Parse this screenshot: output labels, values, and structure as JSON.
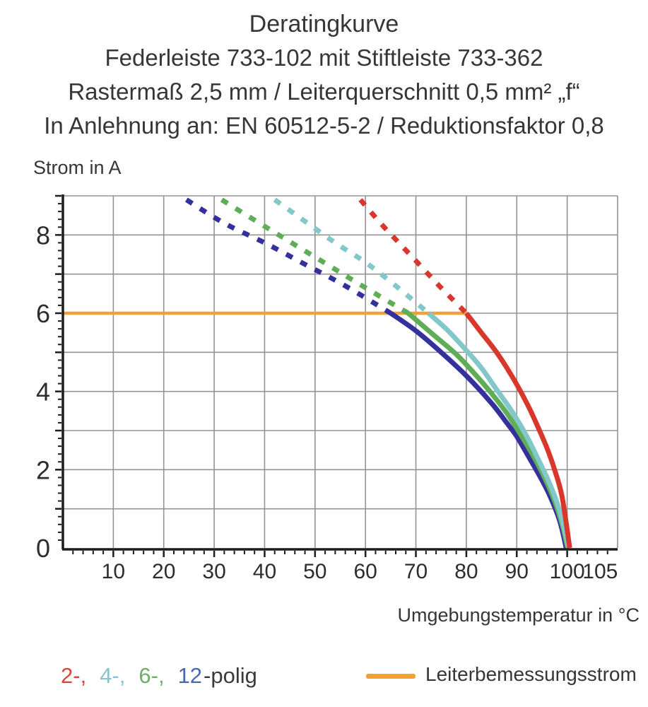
{
  "header": {
    "title": "Deratingkurve",
    "subtitle1": "Federleiste 733-102 mit Stiftleiste 733-362",
    "subtitle2": "Rastermaß 2,5 mm / Leiterquerschnitt 0,5 mm² „f“",
    "subtitle3": "In Anlehnung an: EN 60512-5-2 / Reduktionsfaktor 0,8"
  },
  "chart_data": {
    "type": "line",
    "title": "Deratingkurve",
    "xlabel": "Umgebungstemperatur in °C",
    "ylabel": "Strom in A",
    "xlim": [
      0,
      110
    ],
    "ylim": [
      0,
      9
    ],
    "xticks": [
      10,
      20,
      30,
      40,
      50,
      60,
      70,
      80,
      90,
      100,
      105
    ],
    "xtick_minor_step": 2,
    "ytick_labels": [
      0,
      2,
      4,
      6,
      8
    ],
    "ytick_minor_step": 0.2,
    "grid": true,
    "grid_color": "#939393",
    "axis_color": "#1c1c1c",
    "series": [
      {
        "name": "2-polig",
        "color": "#d8382c",
        "dashed": [
          [
            59,
            8.9
          ],
          [
            63,
            8.3
          ],
          [
            67,
            7.75
          ],
          [
            71,
            7.2
          ],
          [
            75,
            6.65
          ],
          [
            80,
            6.0
          ]
        ],
        "solid": [
          [
            80,
            6.0
          ],
          [
            83,
            5.5
          ],
          [
            86,
            5.0
          ],
          [
            89,
            4.4
          ],
          [
            92,
            3.7
          ],
          [
            94,
            3.15
          ],
          [
            96,
            2.55
          ],
          [
            97.5,
            2.0
          ],
          [
            99,
            1.3
          ],
          [
            100.5,
            0
          ]
        ]
      },
      {
        "name": "4-polig",
        "color": "#82c7c9",
        "dashed": [
          [
            42,
            8.9
          ],
          [
            48,
            8.35
          ],
          [
            54,
            7.8
          ],
          [
            60,
            7.3
          ],
          [
            66,
            6.7
          ],
          [
            72.5,
            6.0
          ]
        ],
        "solid": [
          [
            72.5,
            6.0
          ],
          [
            76,
            5.6
          ],
          [
            80,
            5.05
          ],
          [
            83,
            4.6
          ],
          [
            86,
            4.05
          ],
          [
            89,
            3.5
          ],
          [
            92,
            2.85
          ],
          [
            94.5,
            2.2
          ],
          [
            96.5,
            1.65
          ],
          [
            98.5,
            0.95
          ],
          [
            100.3,
            0
          ]
        ]
      },
      {
        "name": "6-polig",
        "color": "#5fae57",
        "dashed": [
          [
            31.5,
            8.9
          ],
          [
            39,
            8.3
          ],
          [
            46,
            7.75
          ],
          [
            53,
            7.2
          ],
          [
            60,
            6.65
          ],
          [
            68.5,
            6.0
          ]
        ],
        "solid": [
          [
            68.5,
            6.0
          ],
          [
            73,
            5.5
          ],
          [
            78,
            4.95
          ],
          [
            82,
            4.4
          ],
          [
            85,
            3.95
          ],
          [
            88,
            3.45
          ],
          [
            91,
            2.85
          ],
          [
            93.5,
            2.3
          ],
          [
            95.5,
            1.8
          ],
          [
            97.5,
            1.2
          ],
          [
            99,
            0.6
          ],
          [
            100.1,
            0
          ]
        ]
      },
      {
        "name": "12-polig",
        "color": "#34309c",
        "dashed": [
          [
            24.5,
            8.9
          ],
          [
            32,
            8.3
          ],
          [
            40,
            7.8
          ],
          [
            48,
            7.25
          ],
          [
            56,
            6.7
          ],
          [
            65,
            6.0
          ]
        ],
        "solid": [
          [
            65,
            6.0
          ],
          [
            70,
            5.55
          ],
          [
            75,
            5.0
          ],
          [
            80,
            4.4
          ],
          [
            85,
            3.7
          ],
          [
            88,
            3.2
          ],
          [
            90,
            2.85
          ],
          [
            92.5,
            2.3
          ],
          [
            94.5,
            1.85
          ],
          [
            96.5,
            1.35
          ],
          [
            98.5,
            0.7
          ],
          [
            99.8,
            0
          ]
        ]
      }
    ],
    "reference_line": {
      "label": "Leiterbemessungsstrom",
      "current_a": 6,
      "x_from": 0,
      "x_to": 80,
      "color": "#f2a139"
    },
    "legend_position": "bottom"
  },
  "legend": {
    "pole_items": [
      {
        "label": "2-,",
        "color": "#d8453a"
      },
      {
        "label": "4-,",
        "color": "#85c5cd"
      },
      {
        "label": "6-,",
        "color": "#6fae67"
      },
      {
        "label": "12",
        "color": "#4a67b4"
      }
    ],
    "suffix": "-polig",
    "reference_label": "Leiterbemessungsstrom",
    "reference_color": "#f2a139"
  }
}
